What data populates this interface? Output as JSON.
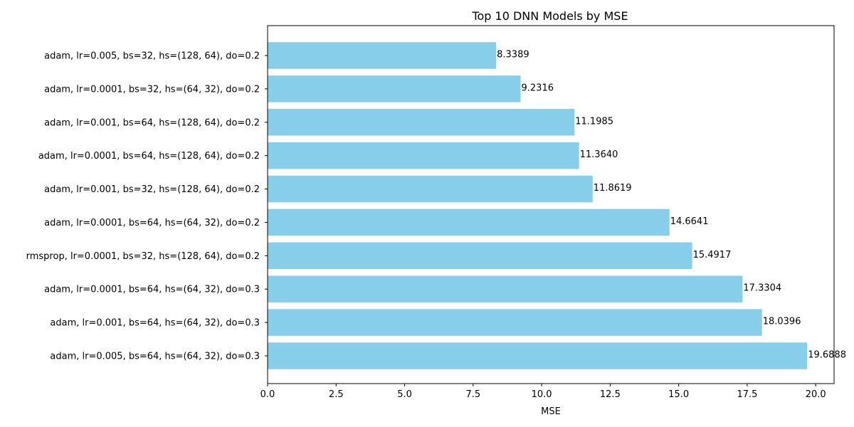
{
  "chart_data": {
    "type": "bar",
    "orientation": "horizontal",
    "title": "Top 10 DNN Models by MSE",
    "xlabel": "MSE",
    "ylabel": "",
    "xlim": [
      0,
      20.67
    ],
    "xticks": [
      0,
      2.5,
      5,
      7.5,
      10,
      12.5,
      15,
      17.5,
      20
    ],
    "xtick_labels": [
      "0.0",
      "2.5",
      "5.0",
      "7.5",
      "10.0",
      "12.5",
      "15.0",
      "17.5",
      "20.0"
    ],
    "grid": false,
    "bar_color": "#87ceeb",
    "categories": [
      "adam, lr=0.005, bs=32, hs=(128, 64), do=0.2",
      "adam, lr=0.0001, bs=32, hs=(64, 32), do=0.2",
      "adam, lr=0.001, bs=64, hs=(128, 64), do=0.2",
      "adam, lr=0.0001, bs=64, hs=(128, 64), do=0.2",
      "adam, lr=0.001, bs=32, hs=(128, 64), do=0.2",
      "adam, lr=0.0001, bs=64, hs=(64, 32), do=0.2",
      "rmsprop, lr=0.0001, bs=32, hs=(128, 64), do=0.2",
      "adam, lr=0.0001, bs=64, hs=(64, 32), do=0.3",
      "adam, lr=0.001, bs=64, hs=(64, 32), do=0.3",
      "adam, lr=0.005, bs=64, hs=(64, 32), do=0.3"
    ],
    "values": [
      8.3389,
      9.2316,
      11.1985,
      11.364,
      11.8619,
      14.6641,
      15.4917,
      17.3304,
      18.0396,
      19.6888
    ],
    "value_labels": [
      "8.3389",
      "9.2316",
      "11.1985",
      "11.3640",
      "11.8619",
      "14.6641",
      "15.4917",
      "17.3304",
      "18.0396",
      "19.6888"
    ]
  }
}
